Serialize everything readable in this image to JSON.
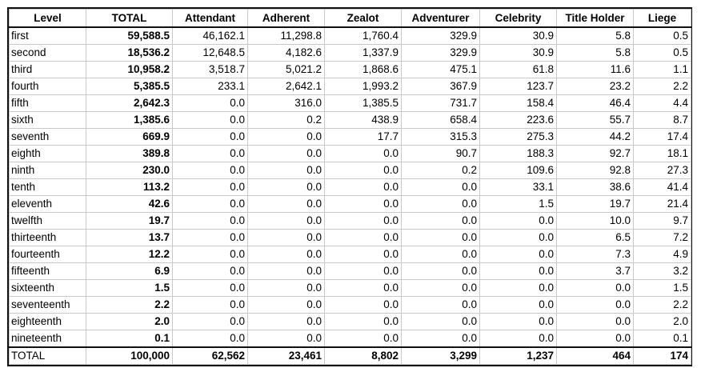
{
  "table": {
    "headers": [
      "Level",
      "TOTAL",
      "Attendant",
      "Adherent",
      "Zealot",
      "Adventurer",
      "Celebrity",
      "Title Holder",
      "Liege"
    ],
    "rows": [
      [
        "first",
        "59,588.5",
        "46,162.1",
        "11,298.8",
        "1,760.4",
        "329.9",
        "30.9",
        "5.8",
        "0.5"
      ],
      [
        "second",
        "18,536.2",
        "12,648.5",
        "4,182.6",
        "1,337.9",
        "329.9",
        "30.9",
        "5.8",
        "0.5"
      ],
      [
        "third",
        "10,958.2",
        "3,518.7",
        "5,021.2",
        "1,868.6",
        "475.1",
        "61.8",
        "11.6",
        "1.1"
      ],
      [
        "fourth",
        "5,385.5",
        "233.1",
        "2,642.1",
        "1,993.2",
        "367.9",
        "123.7",
        "23.2",
        "2.2"
      ],
      [
        "fifth",
        "2,642.3",
        "0.0",
        "316.0",
        "1,385.5",
        "731.7",
        "158.4",
        "46.4",
        "4.4"
      ],
      [
        "sixth",
        "1,385.6",
        "0.0",
        "0.2",
        "438.9",
        "658.4",
        "223.6",
        "55.7",
        "8.7"
      ],
      [
        "seventh",
        "669.9",
        "0.0",
        "0.0",
        "17.7",
        "315.3",
        "275.3",
        "44.2",
        "17.4"
      ],
      [
        "eighth",
        "389.8",
        "0.0",
        "0.0",
        "0.0",
        "90.7",
        "188.3",
        "92.7",
        "18.1"
      ],
      [
        "ninth",
        "230.0",
        "0.0",
        "0.0",
        "0.0",
        "0.2",
        "109.6",
        "92.8",
        "27.3"
      ],
      [
        "tenth",
        "113.2",
        "0.0",
        "0.0",
        "0.0",
        "0.0",
        "33.1",
        "38.6",
        "41.4"
      ],
      [
        "eleventh",
        "42.6",
        "0.0",
        "0.0",
        "0.0",
        "0.0",
        "1.5",
        "19.7",
        "21.4"
      ],
      [
        "twelfth",
        "19.7",
        "0.0",
        "0.0",
        "0.0",
        "0.0",
        "0.0",
        "10.0",
        "9.7"
      ],
      [
        "thirteenth",
        "13.7",
        "0.0",
        "0.0",
        "0.0",
        "0.0",
        "0.0",
        "6.5",
        "7.2"
      ],
      [
        "fourteenth",
        "12.2",
        "0.0",
        "0.0",
        "0.0",
        "0.0",
        "0.0",
        "7.3",
        "4.9"
      ],
      [
        "fifteenth",
        "6.9",
        "0.0",
        "0.0",
        "0.0",
        "0.0",
        "0.0",
        "3.7",
        "3.2"
      ],
      [
        "sixteenth",
        "1.5",
        "0.0",
        "0.0",
        "0.0",
        "0.0",
        "0.0",
        "0.0",
        "1.5"
      ],
      [
        "seventeenth",
        "2.2",
        "0.0",
        "0.0",
        "0.0",
        "0.0",
        "0.0",
        "0.0",
        "2.2"
      ],
      [
        "eighteenth",
        "2.0",
        "0.0",
        "0.0",
        "0.0",
        "0.0",
        "0.0",
        "0.0",
        "2.0"
      ],
      [
        "nineteenth",
        "0.1",
        "0.0",
        "0.0",
        "0.0",
        "0.0",
        "0.0",
        "0.0",
        "0.1"
      ]
    ],
    "footer": [
      "TOTAL",
      "100,000",
      "62,562",
      "23,461",
      "8,802",
      "3,299",
      "1,237",
      "464",
      "174"
    ]
  }
}
